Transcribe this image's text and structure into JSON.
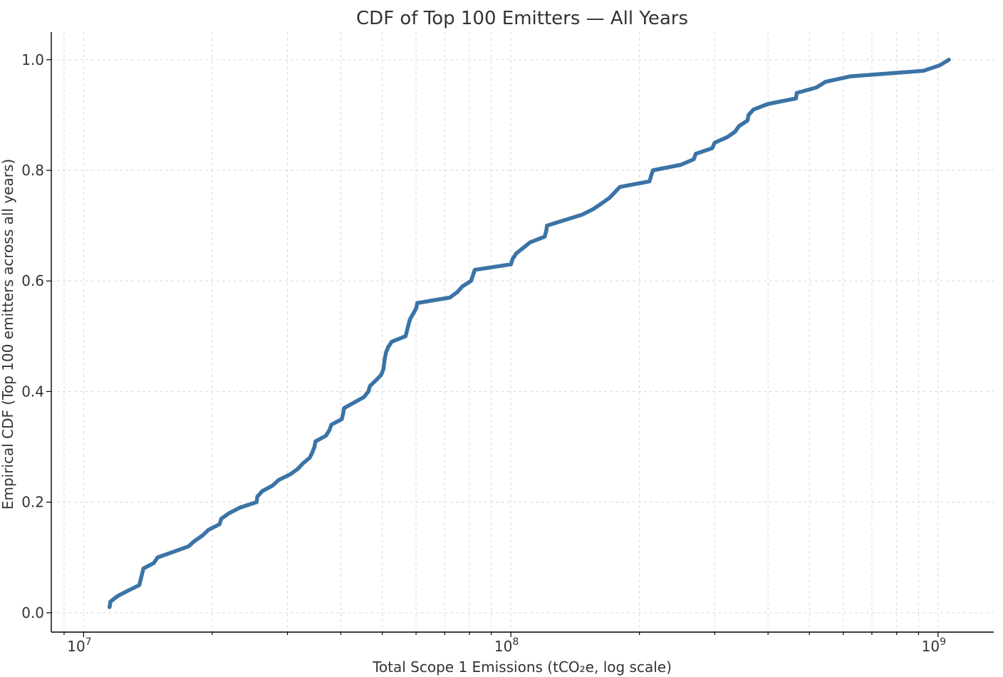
{
  "chart_data": {
    "type": "line",
    "title": "CDF of Top 100 Emitters — All Years",
    "xlabel": "Total Scope 1 Emissions (tCO₂e, log scale)",
    "ylabel": "Empirical CDF (Top 100 emitters across all years)",
    "x_scale": "log",
    "xlim": [
      8400000,
      1350000000
    ],
    "ylim": [
      -0.035,
      1.05
    ],
    "grid": true,
    "x_ticks": [
      {
        "value": 10000000,
        "base": "10",
        "exp": "7"
      },
      {
        "value": 100000000,
        "base": "10",
        "exp": "8"
      },
      {
        "value": 1000000000,
        "base": "10",
        "exp": "9"
      }
    ],
    "y_ticks": [
      {
        "value": 0.0,
        "label": "0.0"
      },
      {
        "value": 0.2,
        "label": "0.2"
      },
      {
        "value": 0.4,
        "label": "0.4"
      },
      {
        "value": 0.6,
        "label": "0.6"
      },
      {
        "value": 0.8,
        "label": "0.8"
      },
      {
        "value": 1.0,
        "label": "1.0"
      }
    ],
    "series": [
      {
        "color": "#3b73a6",
        "points": [
          [
            11500000,
            0.01
          ],
          [
            11550000,
            0.02
          ],
          [
            12000000,
            0.03
          ],
          [
            12700000,
            0.04
          ],
          [
            13500000,
            0.05
          ],
          [
            13600000,
            0.06
          ],
          [
            13700000,
            0.07
          ],
          [
            13800000,
            0.08
          ],
          [
            14600000,
            0.09
          ],
          [
            14900000,
            0.1
          ],
          [
            16200000,
            0.11
          ],
          [
            17600000,
            0.12
          ],
          [
            18200000,
            0.13
          ],
          [
            19000000,
            0.14
          ],
          [
            19600000,
            0.15
          ],
          [
            20800000,
            0.16
          ],
          [
            21000000,
            0.17
          ],
          [
            21900000,
            0.18
          ],
          [
            23200000,
            0.19
          ],
          [
            25400000,
            0.2
          ],
          [
            25500000,
            0.21
          ],
          [
            26200000,
            0.22
          ],
          [
            27700000,
            0.23
          ],
          [
            28600000,
            0.24
          ],
          [
            30400000,
            0.25
          ],
          [
            31700000,
            0.26
          ],
          [
            32600000,
            0.27
          ],
          [
            33800000,
            0.28
          ],
          [
            34300000,
            0.29
          ],
          [
            34700000,
            0.3
          ],
          [
            34900000,
            0.31
          ],
          [
            36900000,
            0.32
          ],
          [
            37600000,
            0.33
          ],
          [
            38000000,
            0.34
          ],
          [
            40200000,
            0.35
          ],
          [
            40500000,
            0.36
          ],
          [
            40700000,
            0.37
          ],
          [
            45300000,
            0.39
          ],
          [
            46400000,
            0.4
          ],
          [
            46800000,
            0.41
          ],
          [
            48300000,
            0.42
          ],
          [
            49700000,
            0.43
          ],
          [
            50300000,
            0.44
          ],
          [
            50700000,
            0.46
          ],
          [
            51000000,
            0.47
          ],
          [
            51600000,
            0.48
          ],
          [
            52600000,
            0.49
          ],
          [
            56700000,
            0.5
          ],
          [
            58000000,
            0.53
          ],
          [
            60000000,
            0.55
          ],
          [
            60400000,
            0.56
          ],
          [
            72000000,
            0.57
          ],
          [
            75000000,
            0.58
          ],
          [
            77000000,
            0.59
          ],
          [
            80700000,
            0.6
          ],
          [
            81500000,
            0.61
          ],
          [
            82300000,
            0.62
          ],
          [
            100000000,
            0.63
          ],
          [
            101000000,
            0.64
          ],
          [
            103000000,
            0.65
          ],
          [
            107000000,
            0.66
          ],
          [
            111000000,
            0.67
          ],
          [
            120000000,
            0.68
          ],
          [
            121000000,
            0.69
          ],
          [
            121500000,
            0.7
          ],
          [
            147000000,
            0.72
          ],
          [
            156000000,
            0.73
          ],
          [
            163000000,
            0.74
          ],
          [
            170000000,
            0.75
          ],
          [
            175000000,
            0.76
          ],
          [
            180000000,
            0.77
          ],
          [
            211000000,
            0.78
          ],
          [
            213000000,
            0.79
          ],
          [
            215000000,
            0.8
          ],
          [
            250000000,
            0.81
          ],
          [
            268000000,
            0.82
          ],
          [
            271000000,
            0.83
          ],
          [
            296000000,
            0.84
          ],
          [
            300000000,
            0.85
          ],
          [
            321000000,
            0.86
          ],
          [
            335000000,
            0.87
          ],
          [
            342000000,
            0.88
          ],
          [
            358000000,
            0.89
          ],
          [
            360000000,
            0.9
          ],
          [
            370000000,
            0.91
          ],
          [
            400000000,
            0.92
          ],
          [
            465000000,
            0.93
          ],
          [
            467000000,
            0.94
          ],
          [
            520000000,
            0.95
          ],
          [
            545000000,
            0.96
          ],
          [
            624000000,
            0.97
          ],
          [
            925000000,
            0.98
          ],
          [
            1010000000,
            0.99
          ],
          [
            1060000000,
            1.0
          ]
        ]
      }
    ]
  }
}
